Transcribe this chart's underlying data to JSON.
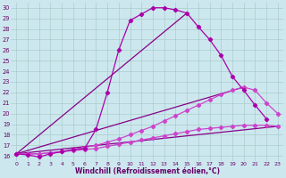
{
  "xlabel": "Windchill (Refroidissement éolien,°C)",
  "xlim": [
    -0.5,
    23.5
  ],
  "ylim": [
    15.5,
    30.5
  ],
  "x_ticks": [
    0,
    1,
    2,
    3,
    4,
    5,
    6,
    7,
    8,
    9,
    10,
    11,
    12,
    13,
    14,
    15,
    16,
    17,
    18,
    19,
    20,
    21,
    22,
    23
  ],
  "y_ticks": [
    16,
    17,
    18,
    19,
    20,
    21,
    22,
    23,
    24,
    25,
    26,
    27,
    28,
    29,
    30
  ],
  "bg_color": "#cce8ee",
  "grid_color": "#aacccc",
  "curve1_x": [
    0,
    1,
    2,
    3,
    4,
    5,
    6,
    7,
    8,
    9,
    10,
    11,
    12,
    13,
    14,
    15,
    16,
    17,
    18,
    19,
    20,
    21,
    22
  ],
  "curve1_y": [
    16.2,
    16.1,
    15.9,
    16.2,
    16.4,
    16.6,
    16.7,
    18.5,
    22.0,
    26.0,
    28.8,
    29.4,
    30.0,
    30.0,
    29.8,
    29.5,
    28.2,
    27.0,
    25.5,
    23.5,
    22.2,
    20.8,
    19.5
  ],
  "curve2_x": [
    0,
    1,
    2,
    3,
    4,
    5,
    6,
    7,
    8,
    9,
    10,
    11,
    12,
    13,
    14,
    15,
    16,
    17,
    18,
    19,
    20,
    21,
    22,
    23
  ],
  "curve2_y": [
    16.2,
    16.2,
    16.2,
    16.3,
    16.4,
    16.6,
    16.8,
    17.0,
    17.3,
    17.6,
    18.0,
    18.4,
    18.8,
    19.3,
    19.8,
    20.3,
    20.8,
    21.3,
    21.8,
    22.2,
    22.5,
    22.2,
    21.0,
    20.0
  ],
  "curve3_x": [
    0,
    1,
    2,
    3,
    4,
    5,
    6,
    7,
    8,
    9,
    10,
    11,
    12,
    13,
    14,
    15,
    16,
    17,
    18,
    19,
    20,
    21,
    22,
    23
  ],
  "curve3_y": [
    16.2,
    16.2,
    16.2,
    16.3,
    16.4,
    16.5,
    16.6,
    16.7,
    16.9,
    17.1,
    17.3,
    17.5,
    17.7,
    17.9,
    18.1,
    18.3,
    18.5,
    18.6,
    18.7,
    18.8,
    18.9,
    18.9,
    18.9,
    18.8
  ],
  "fan_lines": [
    {
      "x": [
        0,
        15
      ],
      "y": [
        16.2,
        29.5
      ]
    },
    {
      "x": [
        0,
        20
      ],
      "y": [
        16.2,
        22.5
      ]
    },
    {
      "x": [
        0,
        23
      ],
      "y": [
        16.2,
        18.8
      ]
    }
  ],
  "c1_color": "#aa00aa",
  "c2_color": "#cc44cc",
  "c3_color": "#cc44cc",
  "fan_color": "#880088",
  "tick_color": "#660066",
  "lw": 0.9,
  "markersize": 2.2
}
